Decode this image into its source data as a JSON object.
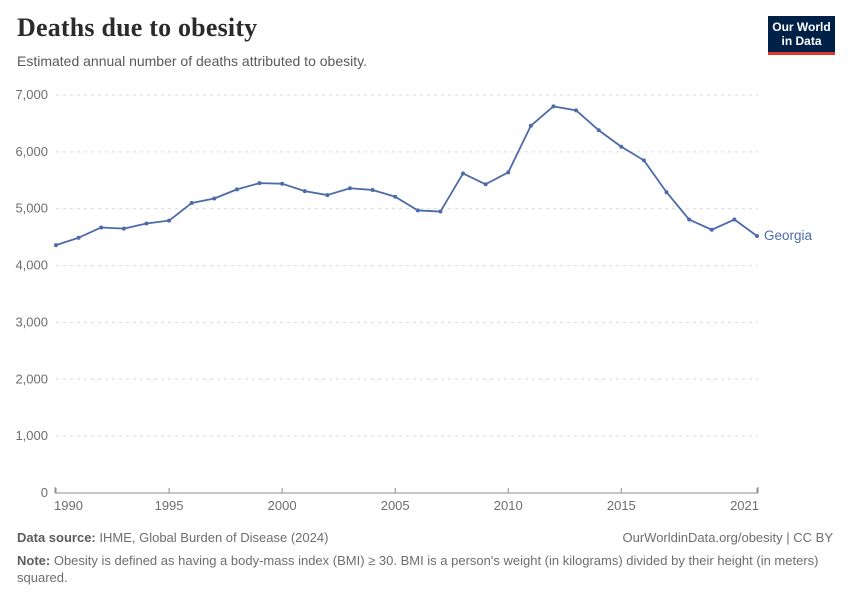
{
  "header": {
    "title": "Deaths due to obesity",
    "subtitle": "Estimated annual number of deaths attributed to obesity.",
    "logo": {
      "line1": "Our World",
      "line2": "in Data"
    }
  },
  "chart_data": {
    "type": "line",
    "title": "Deaths due to obesity",
    "xlabel": "",
    "ylabel": "",
    "xlim": [
      1990,
      2021
    ],
    "ylim": [
      0,
      7000
    ],
    "x_ticks": [
      1990,
      1995,
      2000,
      2005,
      2010,
      2015,
      2021
    ],
    "y_ticks": [
      0,
      1000,
      2000,
      3000,
      4000,
      5000,
      6000,
      7000
    ],
    "grid": "horizontal-dashed",
    "legend_position": "end-of-line-label",
    "series": [
      {
        "name": "Georgia",
        "color": "#4c6ba8",
        "x": [
          1990,
          1991,
          1992,
          1993,
          1994,
          1995,
          1996,
          1997,
          1998,
          1999,
          2000,
          2001,
          2002,
          2003,
          2004,
          2005,
          2006,
          2007,
          2008,
          2009,
          2010,
          2011,
          2012,
          2013,
          2014,
          2015,
          2016,
          2017,
          2018,
          2019,
          2020,
          2021
        ],
        "values": [
          4360,
          4490,
          4670,
          4650,
          4740,
          4790,
          5100,
          5180,
          5340,
          5450,
          5440,
          5310,
          5240,
          5360,
          5330,
          5210,
          4970,
          4950,
          5620,
          5430,
          5640,
          6460,
          6800,
          6730,
          6380,
          6090,
          5850,
          5290,
          4810,
          4630,
          4810,
          4520
        ]
      }
    ]
  },
  "footer": {
    "datasource_label": "Data source:",
    "datasource_text": " IHME, Global Burden of Disease (2024)",
    "link_text": "OurWorldinData.org/obesity | CC BY",
    "note_label": "Note:",
    "note_text": " Obesity is defined as having a body-mass index (BMI) ≥ 30. BMI is a person's weight (in kilograms) divided by their height (in meters) squared."
  },
  "colors": {
    "title": "#2b2b2b",
    "muted": "#595959",
    "navy": "#002147",
    "red": "#d93a2d",
    "line": "#4c6ba8",
    "grid": "#dadada",
    "axis": "#8f8f8f",
    "tick_label": "#6e6e6e"
  }
}
